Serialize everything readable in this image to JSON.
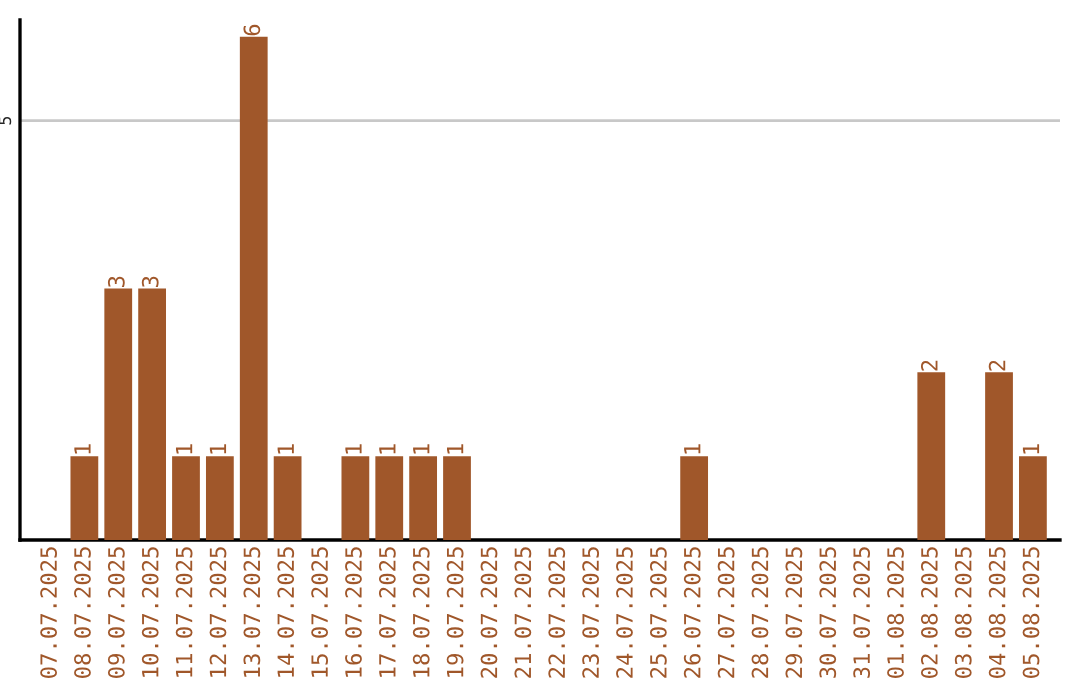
{
  "chart_data": {
    "type": "bar",
    "categories": [
      "07.07.2025",
      "08.07.2025",
      "09.07.2025",
      "10.07.2025",
      "11.07.2025",
      "12.07.2025",
      "13.07.2025",
      "14.07.2025",
      "15.07.2025",
      "16.07.2025",
      "17.07.2025",
      "18.07.2025",
      "19.07.2025",
      "20.07.2025",
      "21.07.2025",
      "22.07.2025",
      "23.07.2025",
      "24.07.2025",
      "25.07.2025",
      "26.07.2025",
      "27.07.2025",
      "28.07.2025",
      "29.07.2025",
      "30.07.2025",
      "31.07.2025",
      "01.08.2025",
      "02.08.2025",
      "03.08.2025",
      "04.08.2025",
      "05.08.2025"
    ],
    "values": [
      0,
      1,
      3,
      3,
      1,
      1,
      6,
      1,
      0,
      1,
      1,
      1,
      1,
      0,
      0,
      0,
      0,
      0,
      0,
      1,
      0,
      0,
      0,
      0,
      0,
      0,
      2,
      0,
      2,
      1
    ],
    "value_labels": [
      null,
      "1",
      "3",
      "3",
      "1",
      "1",
      "6",
      "1",
      null,
      "1",
      "1",
      "1",
      "1",
      null,
      null,
      null,
      null,
      null,
      null,
      "1",
      null,
      null,
      null,
      null,
      null,
      null,
      "2",
      null,
      "2",
      "1"
    ],
    "color": "#a0572a",
    "ylim": [
      0,
      6.2
    ],
    "yticks": [
      5
    ],
    "grid": "y"
  }
}
